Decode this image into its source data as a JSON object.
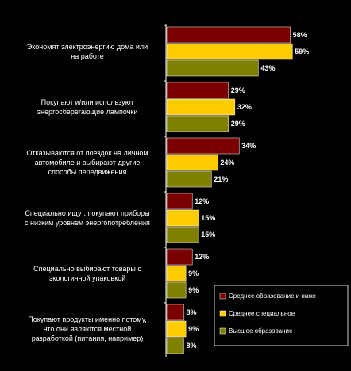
{
  "chart_data": {
    "type": "bar",
    "orientation": "horizontal",
    "categories": [
      "Экономят электроэнергию дома или на работе",
      "Покупают и/или используют энергосберегающие лампочки",
      "Отказываются от поездок на личном автомобиле и выбирают другие способы передвижения",
      "Специально ищут, покупают приборы с низким уровнем энергопотребления",
      "Специально выбирают товары с экологичной упаковкой",
      "Покупают продукты именно потому, что они являются местной разработкой (питания, например)"
    ],
    "series": [
      {
        "name": "Среднее образование и ниже",
        "color": "#7a0000",
        "values": [
          58,
          29,
          34,
          12,
          12,
          8
        ]
      },
      {
        "name": "Среднее специальное",
        "color": "#ffcc00",
        "values": [
          59,
          32,
          24,
          15,
          9,
          9
        ]
      },
      {
        "name": "Высшее образование",
        "color": "#808000",
        "values": [
          43,
          29,
          21,
          15,
          9,
          8
        ]
      }
    ],
    "value_labels": [
      [
        "58%",
        "59%",
        "43%"
      ],
      [
        "29%",
        "32%",
        "29%"
      ],
      [
        "34%",
        "24%",
        "21%"
      ],
      [
        "12%",
        "15%",
        "15%"
      ],
      [
        "12%",
        "9%",
        "9%"
      ],
      [
        "8%",
        "9%",
        "8%"
      ]
    ],
    "xlim": [
      0,
      62
    ],
    "legend_position": "bottom-right",
    "grid": false
  }
}
